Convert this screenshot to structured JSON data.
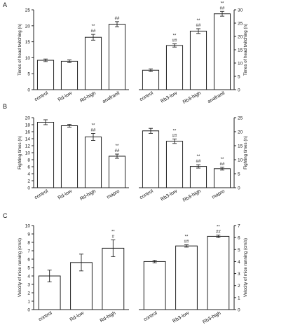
{
  "panel_letters": [
    "A",
    "B",
    "C"
  ],
  "chart_data": [
    {
      "id": "A-left",
      "type": "bar",
      "categories": [
        "control",
        "Rd-low",
        "Rd-high",
        "anafranil"
      ],
      "values": [
        9.2,
        8.9,
        16.4,
        20.5
      ],
      "errors": [
        0.4,
        0.4,
        0.9,
        0.8
      ],
      "annotations": [
        "",
        "",
        "**\n##",
        "##"
      ],
      "ylabel": "Times of head twitching (n)",
      "ylim": [
        0,
        25
      ],
      "yticks": [
        0,
        5,
        10,
        15,
        20,
        25
      ],
      "axis_side": "left",
      "xtick_rotation": -30
    },
    {
      "id": "A-right",
      "type": "bar",
      "categories": [
        "control",
        "Rb3-low",
        "Rb3-high",
        "anafranil"
      ],
      "values": [
        7.3,
        16.6,
        22.0,
        28.5
      ],
      "errors": [
        0.5,
        0.6,
        0.9,
        0.9
      ],
      "annotations": [
        "",
        "**\n##",
        "**\n##",
        "**\n##"
      ],
      "ylabel": "Times of head twitching (n)",
      "ylim": [
        0,
        30
      ],
      "yticks": [
        0,
        5,
        10,
        15,
        20,
        25,
        30
      ],
      "axis_side": "right",
      "xtick_rotation": -30
    },
    {
      "id": "B-left",
      "type": "bar",
      "categories": [
        "control",
        "Rd-low",
        "Rd-high",
        "mapro"
      ],
      "values": [
        18.7,
        17.7,
        14.5,
        9.0
      ],
      "errors": [
        0.7,
        0.4,
        1.0,
        0.6
      ],
      "annotations": [
        "",
        "",
        "**\n##",
        "**\n##"
      ],
      "ylabel": "Fighting times (n)",
      "ylim": [
        0,
        20
      ],
      "yticks": [
        0,
        2,
        4,
        6,
        8,
        10,
        12,
        14,
        16,
        18,
        20
      ],
      "axis_side": "left",
      "xtick_rotation": -30
    },
    {
      "id": "B-right",
      "type": "bar",
      "categories": [
        "control",
        "Rb3-low",
        "Rb3-high",
        "mapro"
      ],
      "values": [
        20.3,
        16.6,
        7.6,
        6.8
      ],
      "errors": [
        0.9,
        0.8,
        0.6,
        0.5
      ],
      "annotations": [
        "",
        "**\n##",
        "**\n##",
        "**\n##"
      ],
      "ylabel": "Fighting times (n)",
      "ylim": [
        0,
        25
      ],
      "yticks": [
        0,
        5,
        10,
        15,
        20,
        25
      ],
      "axis_side": "right",
      "xtick_rotation": -30
    },
    {
      "id": "C-left",
      "type": "bar",
      "categories": [
        "control",
        "Rd-low",
        "Rd-high"
      ],
      "values": [
        4.0,
        5.6,
        7.3
      ],
      "errors": [
        0.7,
        1.0,
        1.0
      ],
      "annotations": [
        "",
        "",
        "**\n#"
      ],
      "ylabel": "Velocity of mice running (cm/s)",
      "ylim": [
        0,
        10
      ],
      "yticks": [
        0,
        1,
        2,
        3,
        4,
        5,
        6,
        7,
        8,
        9,
        10
      ],
      "axis_side": "left",
      "xtick_rotation": -30
    },
    {
      "id": "C-right",
      "type": "bar",
      "categories": [
        "control",
        "Rb3-low",
        "Rb3-high"
      ],
      "values": [
        4.0,
        5.3,
        6.1
      ],
      "errors": [
        0.1,
        0.1,
        0.1
      ],
      "annotations": [
        "",
        "**\n##",
        "**\n##"
      ],
      "ylabel": "Velocity of mice running (cm/s)",
      "ylim": [
        0,
        7
      ],
      "yticks": [
        0,
        1,
        2,
        3,
        4,
        5,
        6,
        7
      ],
      "axis_side": "right",
      "xtick_rotation": -30
    }
  ]
}
